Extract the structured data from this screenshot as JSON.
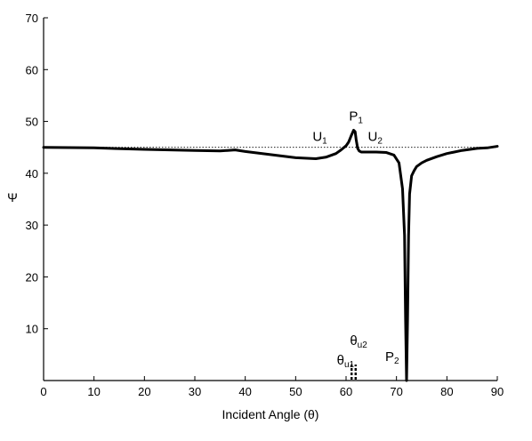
{
  "chart_data": {
    "type": "line",
    "xlabel": "Incident Angle (θ)",
    "ylabel": "Ψ",
    "xlim": [
      0,
      90
    ],
    "ylim": [
      0,
      70
    ],
    "xticks": [
      0,
      10,
      20,
      30,
      40,
      50,
      60,
      70,
      80,
      90
    ],
    "yticks": [
      10,
      20,
      30,
      40,
      50,
      60,
      70
    ],
    "grid": false,
    "reference_line": {
      "y": 45,
      "style": "dotted"
    },
    "series": [
      {
        "x": [
          0,
          10,
          20,
          30,
          35,
          38,
          40,
          45,
          50,
          54,
          56,
          58,
          59,
          60,
          60.5,
          61,
          61.5,
          61.8,
          62,
          62.3,
          62.6,
          63,
          64,
          66,
          68,
          69.5,
          70.5,
          71.2,
          71.6,
          71.8,
          72,
          72.2,
          72.4,
          72.6,
          73,
          73.5,
          74,
          75,
          76,
          78,
          80,
          83,
          86,
          88,
          90
        ],
        "y": [
          45,
          44.9,
          44.6,
          44.4,
          44.3,
          44.5,
          44.2,
          43.6,
          43.0,
          42.8,
          43.1,
          43.8,
          44.5,
          45.3,
          46.0,
          47.2,
          48.3,
          48.0,
          46.5,
          44.8,
          44.3,
          44.1,
          44.1,
          44.1,
          44.0,
          43.5,
          42.0,
          37.0,
          28.0,
          12.0,
          0,
          12.0,
          28.0,
          36.0,
          39.5,
          40.5,
          41.3,
          42.0,
          42.5,
          43.2,
          43.8,
          44.4,
          44.8,
          44.9,
          45.2
        ]
      }
    ],
    "annotations": [
      {
        "text": "P",
        "sub": "1",
        "x": 62,
        "y": 48.3
      },
      {
        "text": "U",
        "sub": "1",
        "x": 59,
        "y": 45
      },
      {
        "text": "U",
        "sub": "2",
        "x": 64.5,
        "y": 45
      },
      {
        "text": "P",
        "sub": "2",
        "x": 72,
        "y": 0
      },
      {
        "text": "θ",
        "sub": "u1",
        "x": 61,
        "y": 0
      },
      {
        "text": "θ",
        "sub": "u2",
        "x": 62,
        "y": 0
      }
    ],
    "markers": [
      {
        "type": "dashed-vline",
        "x": 61.1
      },
      {
        "type": "dashed-vline",
        "x": 61.9
      }
    ]
  }
}
